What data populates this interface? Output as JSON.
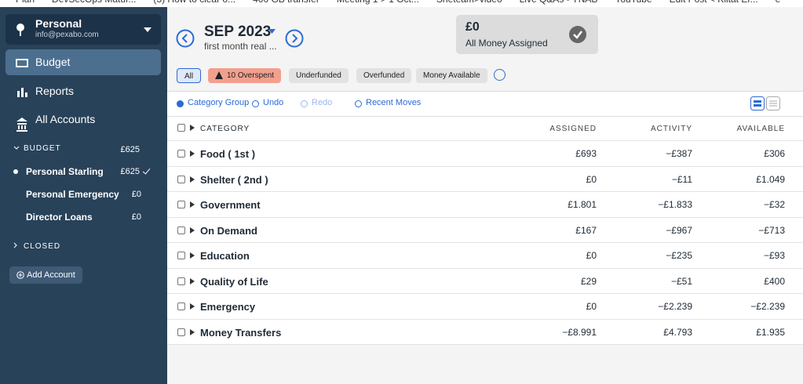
{
  "bookmarks": [
    "Plan",
    "DevSecOps Matur...",
    "(3) How to clear o...",
    "400 GB transfer",
    "Meeting 1 > 1 Oct...",
    "Sheteam>video",
    "Live Q&As - YNAB",
    "YouTube",
    "Edit Post < Kiitat Er...",
    "e"
  ],
  "sidebar": {
    "account_name": "Personal",
    "email": "info@pexabo.com",
    "nav": [
      "Budget",
      "Reports",
      "All Accounts"
    ],
    "budget_group": {
      "label": "BUDGET",
      "total": "£625"
    },
    "accounts": [
      {
        "name": "Personal Starling",
        "balance": "£625"
      },
      {
        "name": "Personal Emergency",
        "balance": "£0"
      },
      {
        "name": "Director Loans",
        "balance": "£0"
      }
    ],
    "closed": "CLOSED",
    "add_account": "Add Account"
  },
  "header": {
    "month": "SEP 2023",
    "note": "first month real ...",
    "assigned_amount": "£0",
    "assigned_label": "All Money Assigned"
  },
  "filters": [
    "All",
    "10 Overspent",
    "Underfunded",
    "Overfunded",
    "Money Available"
  ],
  "toolbar": [
    "Category Group",
    "Undo",
    "Redo",
    "Recent Moves"
  ],
  "table": {
    "columns": [
      "CATEGORY",
      "ASSIGNED",
      "ACTIVITY",
      "AVAILABLE"
    ],
    "rows": [
      [
        "Food ( 1st )",
        "£693",
        "−£387",
        "£306"
      ],
      [
        "Shelter ( 2nd )",
        "£0",
        "−£11",
        "£1.049"
      ],
      [
        "Government",
        "£1.801",
        "−£1.833",
        "−£32"
      ],
      [
        "On Demand",
        "£167",
        "−£967",
        "−£713"
      ],
      [
        "Education",
        "£0",
        "−£235",
        "−£93"
      ],
      [
        "Quality of Life",
        "£29",
        "−£51",
        "£400"
      ],
      [
        "Emergency",
        "£0",
        "−£2.239",
        "−£2.239"
      ],
      [
        "Money Transfers",
        "−£8.991",
        "£4.793",
        "£1.935"
      ]
    ]
  }
}
